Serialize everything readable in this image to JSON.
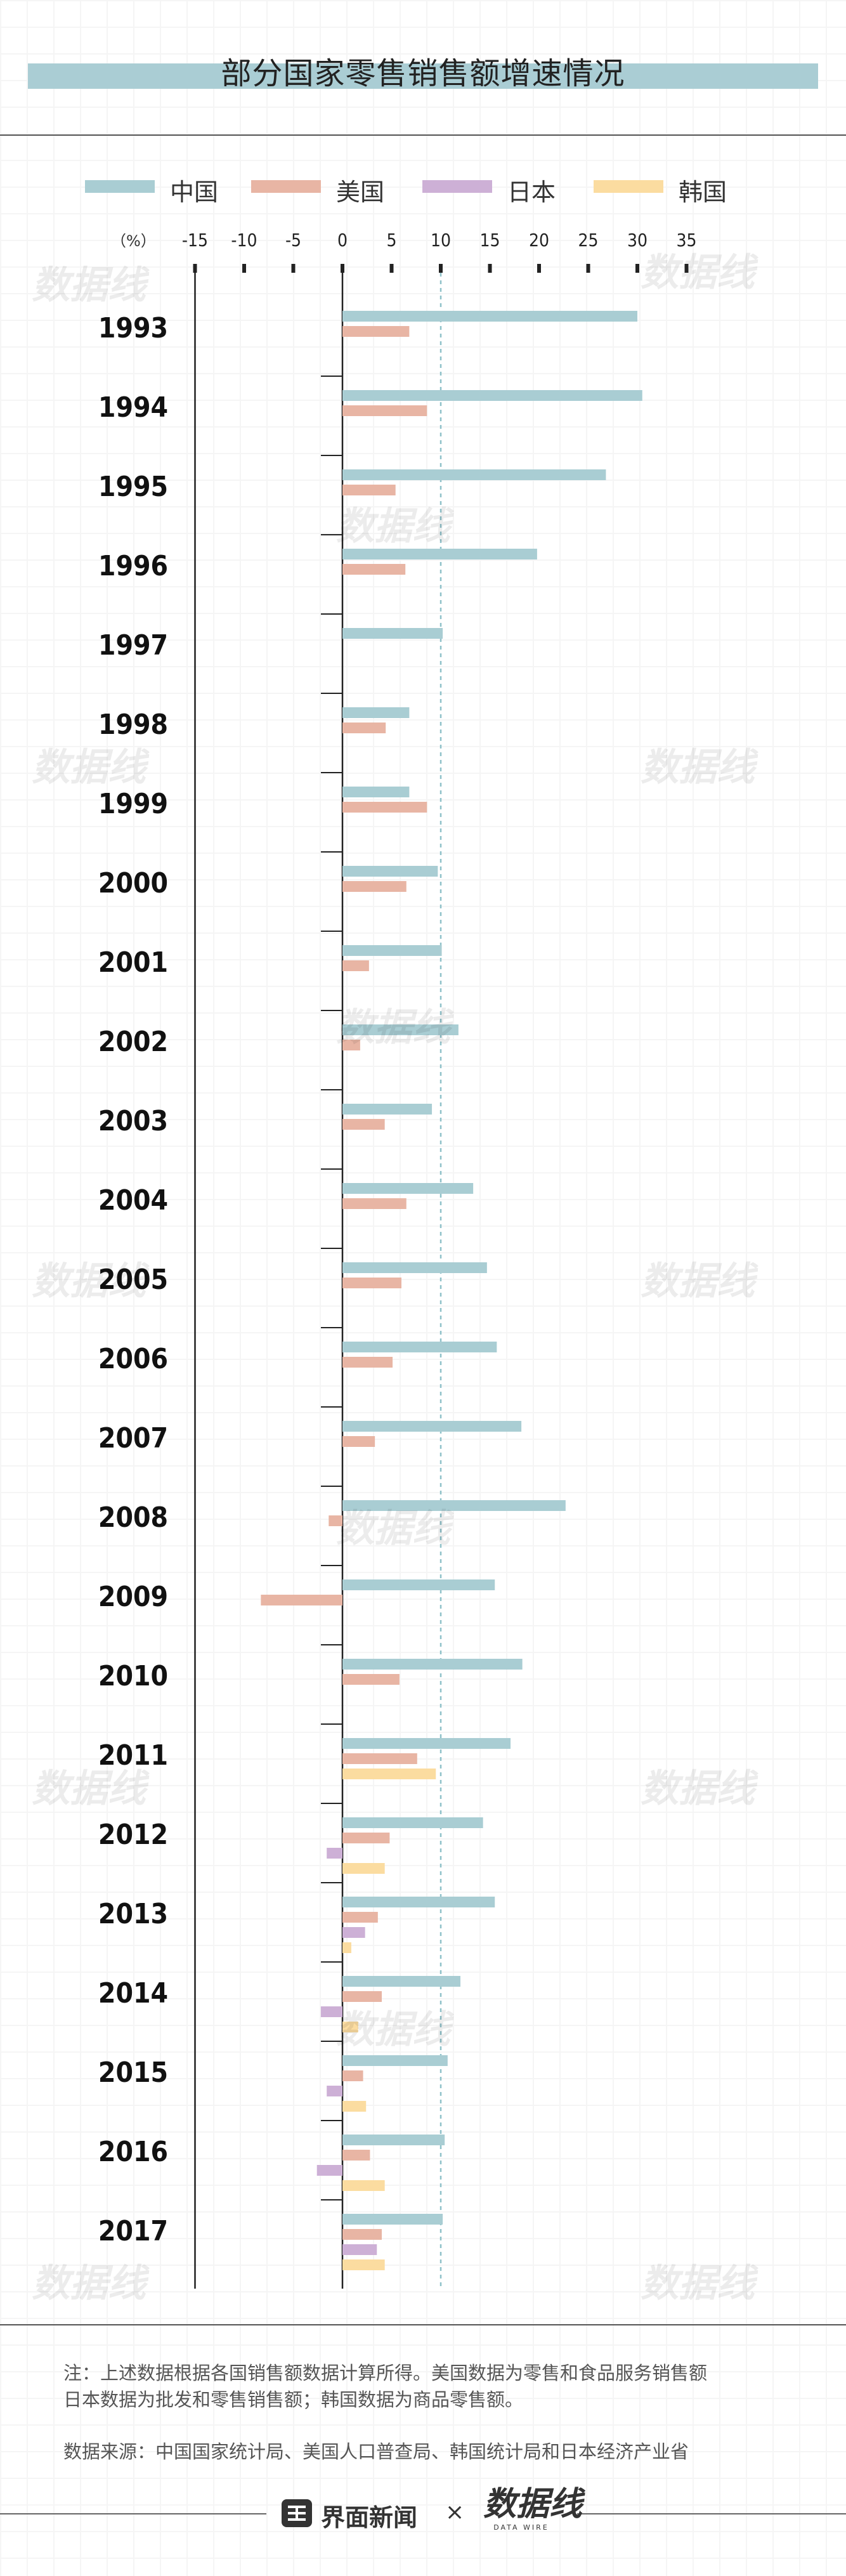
{
  "title": "部分国家零售销售额增速情况",
  "colors": {
    "china": "#a9cdd3",
    "usa": "#e8b5a4",
    "japan": "#cdb0d6",
    "korea": "#fbdca0",
    "axis": "#222222",
    "reference_line": "#8fc1c9"
  },
  "legend": [
    {
      "label": "中国",
      "color_key": "china"
    },
    {
      "label": "美国",
      "color_key": "usa"
    },
    {
      "label": "日本",
      "color_key": "japan"
    },
    {
      "label": "韩国",
      "color_key": "korea"
    }
  ],
  "chart_data": {
    "type": "bar",
    "orientation": "horizontal",
    "title": "部分国家零售销售额增速情况",
    "unit_label": "（%）",
    "x_ticks": [
      "-15",
      "-10",
      "-5",
      "0",
      "5",
      "10",
      "15",
      "20",
      "25",
      "30",
      "35"
    ],
    "xlim": [
      -15,
      35
    ],
    "reference_line_x": 10,
    "categories": [
      "1993",
      "1994",
      "1995",
      "1996",
      "1997",
      "1998",
      "1999",
      "2000",
      "2001",
      "2002",
      "2003",
      "2004",
      "2005",
      "2006",
      "2007",
      "2008",
      "2009",
      "2010",
      "2011",
      "2012",
      "2013",
      "2014",
      "2015",
      "2016",
      "2017"
    ],
    "series": [
      {
        "name": "中国",
        "color_key": "china",
        "values": [
          30.0,
          30.5,
          26.8,
          19.8,
          10.2,
          6.8,
          6.8,
          9.7,
          10.1,
          11.8,
          9.1,
          13.3,
          14.7,
          15.7,
          18.2,
          22.7,
          15.5,
          18.3,
          17.1,
          14.3,
          15.5,
          12.0,
          10.7,
          10.4,
          10.2
        ]
      },
      {
        "name": "美国",
        "color_key": "usa",
        "values": [
          6.8,
          8.6,
          5.4,
          6.4,
          null,
          4.4,
          8.6,
          6.5,
          2.7,
          1.8,
          4.3,
          6.5,
          6.0,
          5.1,
          3.3,
          -1.4,
          -8.3,
          5.8,
          7.6,
          4.8,
          3.6,
          4.0,
          2.1,
          2.8,
          4.0
        ]
      },
      {
        "name": "日本",
        "color_key": "japan",
        "values": [
          null,
          null,
          null,
          null,
          null,
          null,
          null,
          null,
          null,
          null,
          null,
          null,
          null,
          null,
          null,
          null,
          null,
          null,
          null,
          -1.6,
          2.3,
          -2.2,
          -1.6,
          -2.6,
          3.5
        ]
      },
      {
        "name": "韩国",
        "color_key": "korea",
        "values": [
          null,
          null,
          null,
          null,
          null,
          null,
          null,
          null,
          null,
          null,
          null,
          null,
          null,
          null,
          null,
          null,
          null,
          null,
          9.5,
          4.3,
          0.9,
          1.6,
          2.4,
          4.3,
          4.3
        ]
      }
    ],
    "grid": false,
    "legend_position": "top"
  },
  "footer": {
    "note_line1": "注：上述数据根据各国销售额数据计算所得。美国数据为零售和食品服务销售额",
    "note_line2": "日本数据为批发和零售销售额；韩国数据为商品零售额。",
    "source": "数据来源：中国国家统计局、美国人口普查局、韩国统计局和日本经济产业省",
    "brand_name": "界面新闻",
    "brand_separator": "×",
    "partner_logo_text": "数据线",
    "partner_logo_sub": "DATA WIRE"
  }
}
